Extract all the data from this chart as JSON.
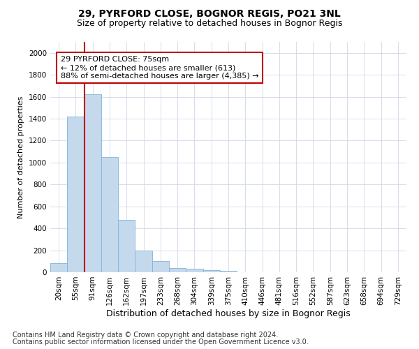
{
  "title": "29, PYRFORD CLOSE, BOGNOR REGIS, PO21 3NL",
  "subtitle": "Size of property relative to detached houses in Bognor Regis",
  "xlabel": "Distribution of detached houses by size in Bognor Regis",
  "ylabel": "Number of detached properties",
  "categories": [
    "20sqm",
    "55sqm",
    "91sqm",
    "126sqm",
    "162sqm",
    "197sqm",
    "233sqm",
    "268sqm",
    "304sqm",
    "339sqm",
    "375sqm",
    "410sqm",
    "446sqm",
    "481sqm",
    "516sqm",
    "552sqm",
    "587sqm",
    "623sqm",
    "658sqm",
    "694sqm",
    "729sqm"
  ],
  "values": [
    80,
    1420,
    1620,
    1050,
    480,
    200,
    100,
    40,
    30,
    20,
    15,
    0,
    0,
    0,
    0,
    0,
    0,
    0,
    0,
    0,
    0
  ],
  "bar_color": "#c5d9ed",
  "bar_edge_color": "#7fb3d9",
  "vline_x_idx": 1.5,
  "vline_color": "#c00000",
  "annotation_text": "29 PYRFORD CLOSE: 75sqm\n← 12% of detached houses are smaller (613)\n88% of semi-detached houses are larger (4,385) →",
  "annotation_box_color": "#ffffff",
  "annotation_box_edge": "#c00000",
  "ylim": [
    0,
    2100
  ],
  "yticks": [
    0,
    200,
    400,
    600,
    800,
    1000,
    1200,
    1400,
    1600,
    1800,
    2000
  ],
  "footer1": "Contains HM Land Registry data © Crown copyright and database right 2024.",
  "footer2": "Contains public sector information licensed under the Open Government Licence v3.0.",
  "bg_color": "#ffffff",
  "grid_color": "#d0d8e8",
  "title_fontsize": 10,
  "subtitle_fontsize": 9,
  "ylabel_fontsize": 8,
  "xlabel_fontsize": 9,
  "tick_fontsize": 7.5,
  "footer_fontsize": 7,
  "annot_fontsize": 8
}
